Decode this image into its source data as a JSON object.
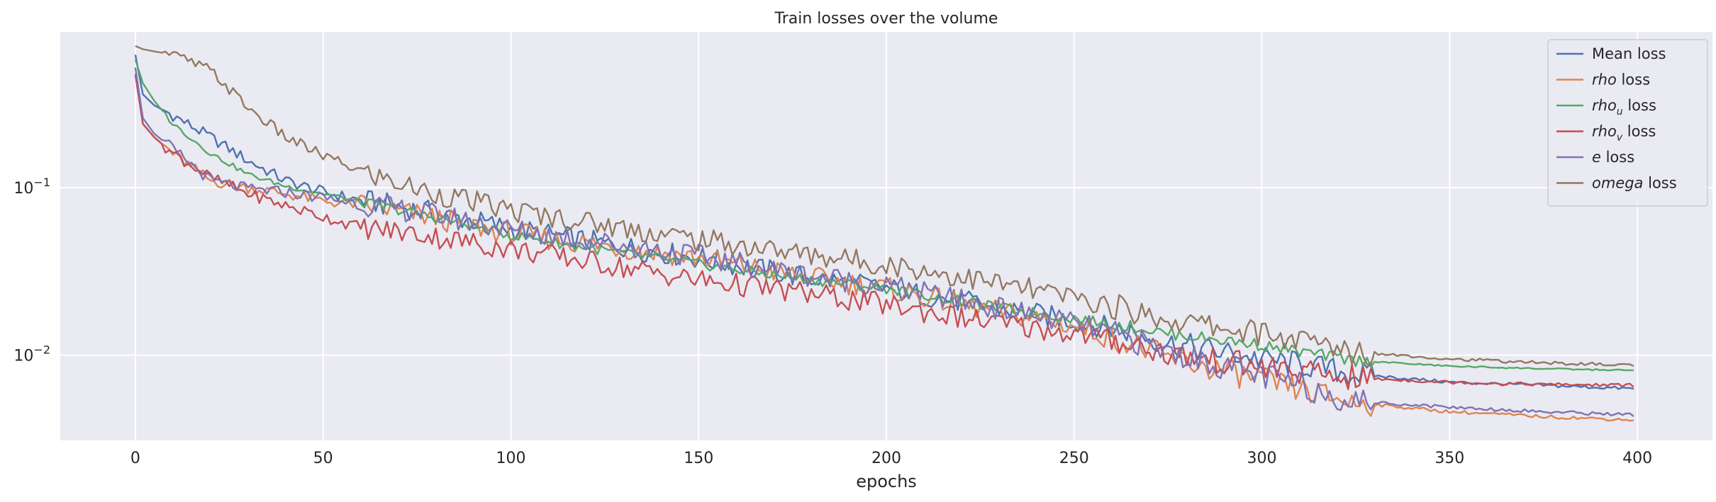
{
  "chart_data": {
    "type": "line",
    "title": "Train losses over the volume",
    "xlabel": "epochs",
    "ylabel": "",
    "yscale": "log",
    "xlim": [
      -20,
      420
    ],
    "ylim": [
      0.0031,
      0.85
    ],
    "grid": true,
    "legend_position": "top-right",
    "x_ticks": [
      0,
      50,
      100,
      150,
      200,
      250,
      300,
      350,
      400
    ],
    "x_tick_labels": [
      "0",
      "50",
      "100",
      "150",
      "200",
      "250",
      "300",
      "350",
      "400"
    ],
    "y_tick_labels": [
      {
        "value": 0.1,
        "base": "10",
        "exp": "−1"
      },
      {
        "value": 0.01,
        "base": "10",
        "exp": "−2"
      }
    ],
    "x": [
      0,
      2,
      5,
      10,
      20,
      30,
      40,
      50,
      60,
      75,
      100,
      125,
      150,
      175,
      200,
      225,
      250,
      265,
      275,
      300,
      310,
      325,
      350,
      375,
      400
    ],
    "series": [
      {
        "name": "Mean loss",
        "label_parts": [
          {
            "t": "Mean loss",
            "i": false
          }
        ],
        "color": "#4c72b0",
        "values": [
          0.62,
          0.36,
          0.31,
          0.27,
          0.2,
          0.145,
          0.11,
          0.094,
          0.084,
          0.074,
          0.057,
          0.046,
          0.038,
          0.03,
          0.025,
          0.02,
          0.016,
          0.0138,
          0.0118,
          0.0095,
          0.0088,
          0.0077,
          0.0069,
          0.0066,
          0.0063
        ]
      },
      {
        "name": "rho loss",
        "label_parts": [
          {
            "t": "rho",
            "i": true
          },
          {
            "t": " loss",
            "i": false
          }
        ],
        "color": "#dd8452",
        "values": [
          0.48,
          0.24,
          0.2,
          0.16,
          0.11,
          0.1,
          0.092,
          0.083,
          0.079,
          0.069,
          0.053,
          0.045,
          0.038,
          0.03,
          0.025,
          0.019,
          0.015,
          0.0117,
          0.0096,
          0.0071,
          0.0062,
          0.0052,
          0.0046,
          0.0043,
          0.0041
        ]
      },
      {
        "name": "rho_u loss",
        "label_parts": [
          {
            "t": "rho",
            "i": true
          },
          {
            "t": "u",
            "i": true,
            "sub": true
          },
          {
            "t": " loss",
            "i": false
          }
        ],
        "color": "#55a868",
        "values": [
          0.58,
          0.42,
          0.33,
          0.24,
          0.16,
          0.12,
          0.102,
          0.092,
          0.082,
          0.07,
          0.052,
          0.042,
          0.035,
          0.029,
          0.025,
          0.02,
          0.0165,
          0.0148,
          0.0135,
          0.0115,
          0.0105,
          0.0093,
          0.0086,
          0.0083,
          0.0081
        ]
      },
      {
        "name": "rho_v loss",
        "label_parts": [
          {
            "t": "rho",
            "i": true
          },
          {
            "t": "v",
            "i": true,
            "sub": true
          },
          {
            "t": " loss",
            "i": false
          }
        ],
        "color": "#c44e52",
        "values": [
          0.47,
          0.24,
          0.2,
          0.16,
          0.115,
          0.092,
          0.078,
          0.067,
          0.058,
          0.053,
          0.043,
          0.035,
          0.028,
          0.024,
          0.02,
          0.016,
          0.0135,
          0.0118,
          0.0102,
          0.0085,
          0.0079,
          0.0073,
          0.0069,
          0.0067,
          0.0066
        ]
      },
      {
        "name": "e loss",
        "label_parts": [
          {
            "t": "e",
            "i": true
          },
          {
            "t": " loss",
            "i": false
          }
        ],
        "color": "#8172b3",
        "values": [
          0.52,
          0.26,
          0.21,
          0.17,
          0.11,
          0.098,
          0.094,
          0.087,
          0.08,
          0.072,
          0.056,
          0.047,
          0.039,
          0.031,
          0.026,
          0.02,
          0.0155,
          0.0125,
          0.0105,
          0.0075,
          0.0066,
          0.0053,
          0.0049,
          0.0046,
          0.0044
        ]
      },
      {
        "name": "omega loss",
        "label_parts": [
          {
            "t": "omega",
            "i": true
          },
          {
            "t": " loss",
            "i": false
          }
        ],
        "color": "#937860",
        "values": [
          0.7,
          0.67,
          0.65,
          0.62,
          0.5,
          0.3,
          0.2,
          0.155,
          0.125,
          0.098,
          0.073,
          0.06,
          0.049,
          0.041,
          0.035,
          0.028,
          0.022,
          0.0185,
          0.0163,
          0.0135,
          0.0122,
          0.0105,
          0.0095,
          0.009,
          0.0087
        ]
      }
    ]
  }
}
